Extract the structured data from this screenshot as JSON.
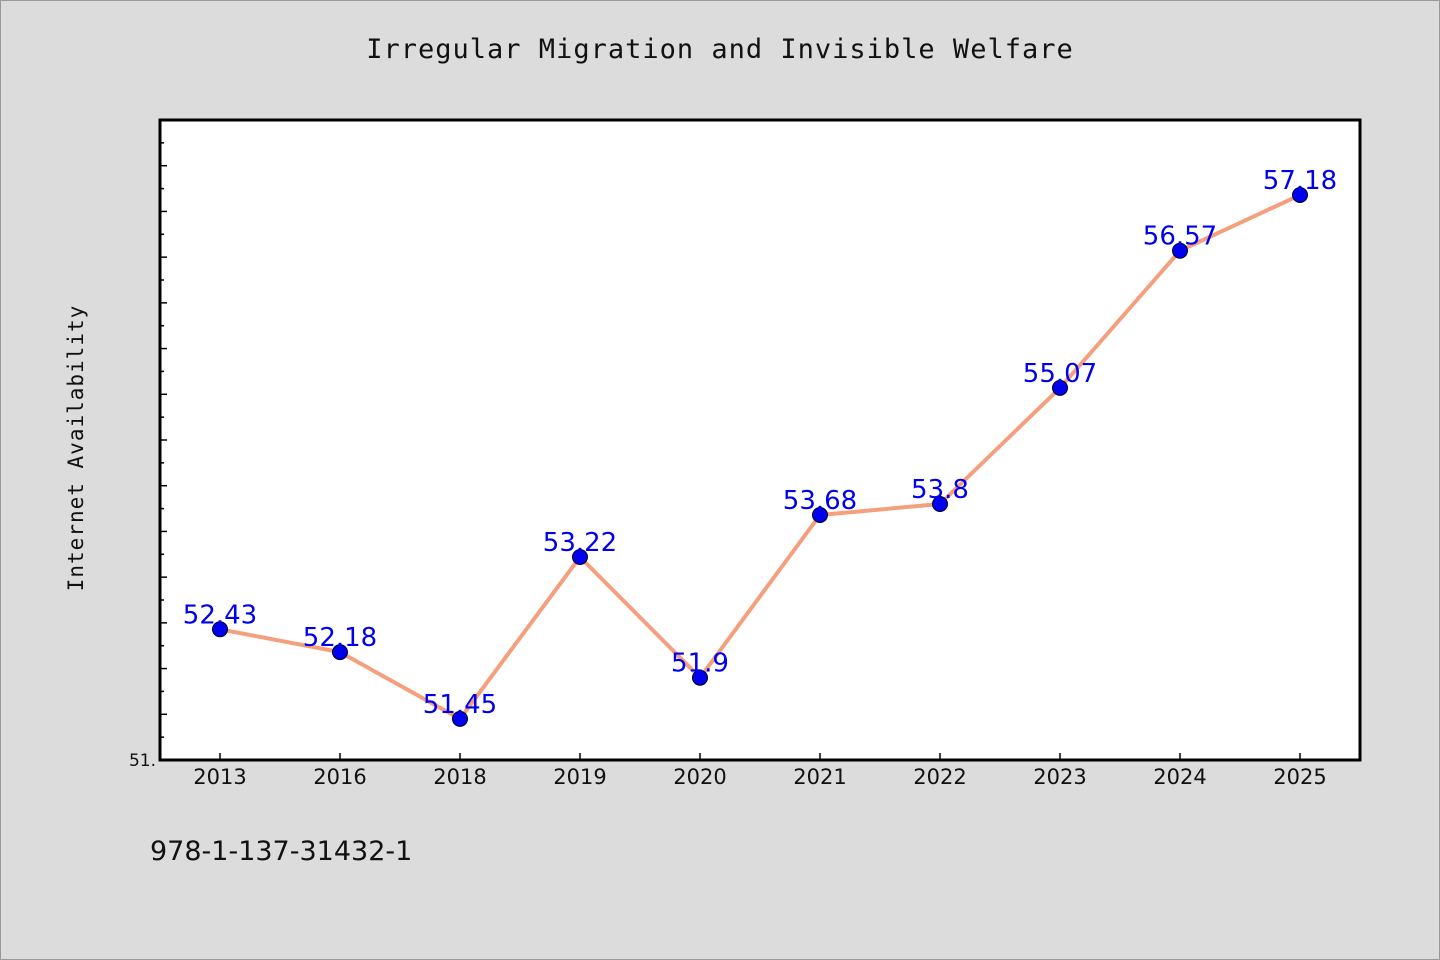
{
  "chart_data": {
    "type": "line",
    "title": "Irregular Migration and Invisible Welfare",
    "ylabel": "Internet Availability",
    "xlabel": "",
    "categories": [
      "2013",
      "2016",
      "2018",
      "2019",
      "2020",
      "2021",
      "2022",
      "2023",
      "2024",
      "2025"
    ],
    "values": [
      52.43,
      52.18,
      51.45,
      53.22,
      51.9,
      53.68,
      53.8,
      55.07,
      56.57,
      57.18
    ],
    "data_labels": [
      "52.43",
      "52.18",
      "51.45",
      "53.22",
      "51.9",
      "53.68",
      "53.8",
      "55.07",
      "56.57",
      "57.18"
    ],
    "y_tick_labels": [
      "51."
    ],
    "ylim": [
      51,
      58
    ],
    "grid": false,
    "legend": "none",
    "line_color": "#f4a07e",
    "marker_color": "#0000ee",
    "label_color": "#0000ee"
  },
  "footnote": "978-1-137-31432-1"
}
